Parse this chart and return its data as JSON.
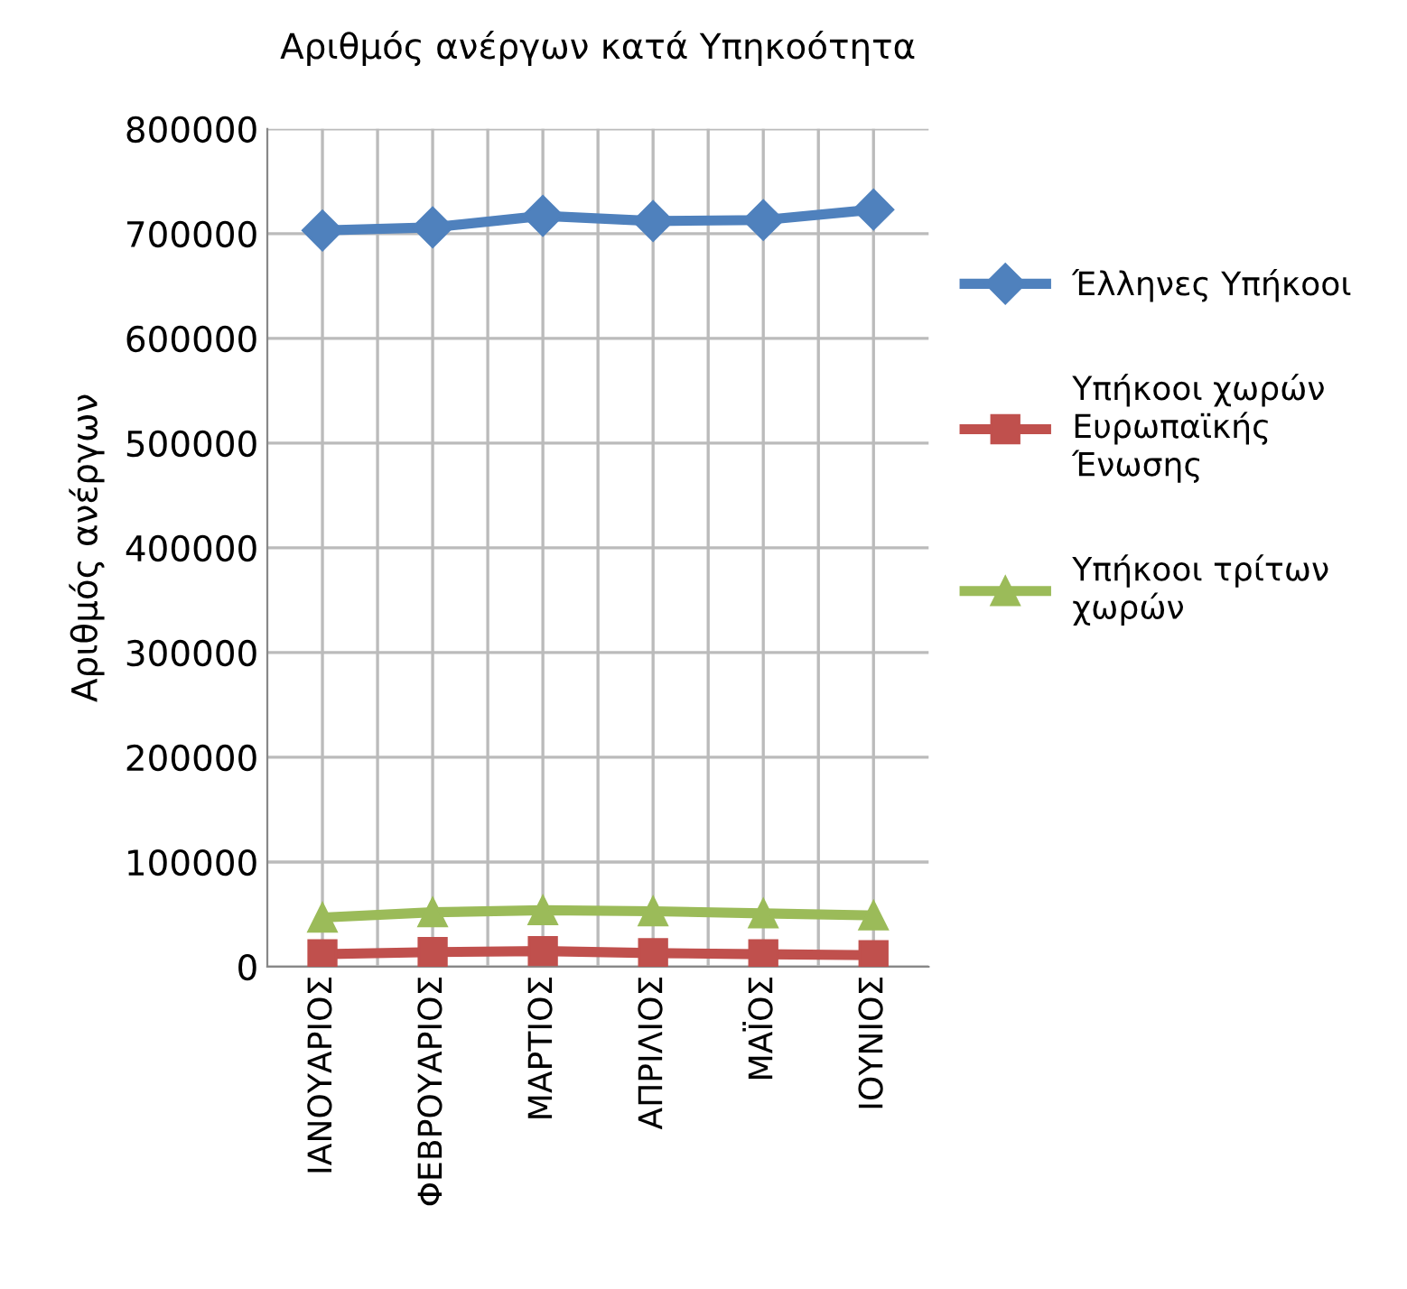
{
  "chart_data": {
    "type": "line",
    "title": "Αριθμός ανέργων κατά Υπηκοότητα",
    "ylabel": "Αριθμός ανέργων",
    "categories": [
      "ΙΑΝΟΥΑΡΙΟΣ",
      "ΦΕΒΡΟΥΑΡΙΟΣ",
      "ΜΑΡΤΙΟΣ",
      "ΑΠΡΙΛΙΟΣ",
      "ΜΑΪΟΣ",
      "ΙΟΥΝΙΟΣ"
    ],
    "series": [
      {
        "name": "Έλληνες Υπήκοοι",
        "color": "#4f81bd",
        "marker": "diamond",
        "values": [
          703000,
          706000,
          717000,
          712000,
          713000,
          723000
        ]
      },
      {
        "name": "Υπήκοοι χωρών Ευρωπαϊκής Ένωσης",
        "color": "#c0504d",
        "marker": "square",
        "values": [
          12000,
          14000,
          15000,
          13000,
          12000,
          11000
        ]
      },
      {
        "name": "Υπήκοοι τρίτων χωρών",
        "color": "#9bbb59",
        "marker": "triangle",
        "values": [
          47000,
          52000,
          54000,
          53000,
          51000,
          49000
        ]
      }
    ],
    "ylim": [
      0,
      800000
    ],
    "yticks": [
      0,
      100000,
      200000,
      300000,
      400000,
      500000,
      600000,
      700000,
      800000
    ],
    "grid": true,
    "legend": "right",
    "line_style": "solid"
  }
}
